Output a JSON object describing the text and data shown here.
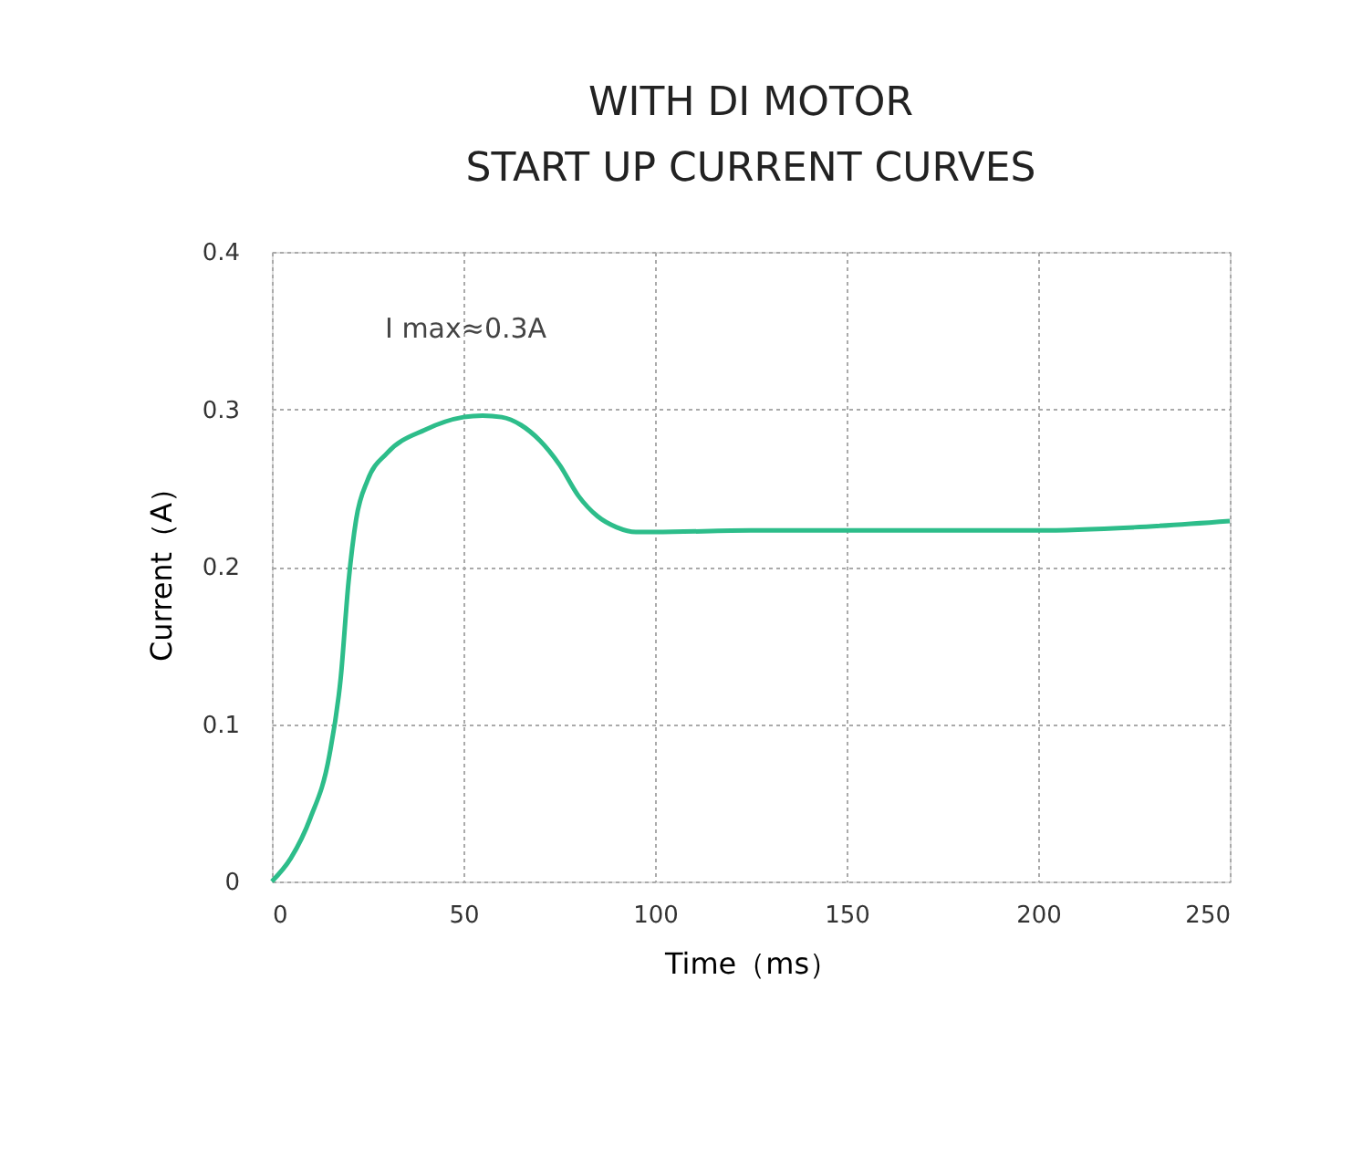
{
  "chart_data": {
    "type": "line",
    "title": [
      "WITH DI MOTOR",
      "START UP CURRENT CURVES"
    ],
    "xlabel": "Time（ms）",
    "ylabel": "Current（A）",
    "x": [
      0,
      5,
      10,
      15,
      18,
      20,
      22,
      25,
      30,
      40,
      50,
      55,
      60,
      65,
      70,
      75,
      80,
      85,
      90,
      95,
      100,
      125,
      150,
      175,
      200,
      225,
      250
    ],
    "series": [
      {
        "color": "#2dbd8a",
        "values": [
          0,
          0.015,
          0.04,
          0.08,
          0.13,
          0.19,
          0.23,
          0.255,
          0.272,
          0.287,
          0.295,
          0.296,
          0.295,
          0.29,
          0.28,
          0.265,
          0.245,
          0.232,
          0.225,
          0.222,
          0.222,
          0.223,
          0.223,
          0.223,
          0.223,
          0.225,
          0.229
        ]
      }
    ],
    "xlim": [
      0,
      250
    ],
    "xticks": [
      0,
      50,
      100,
      150,
      200,
      250
    ],
    "ylim": [
      0,
      0.4
    ],
    "yticks": [
      {
        "value": 0,
        "label": "0"
      },
      0.1,
      0.2,
      0.3,
      0.4
    ],
    "grid": true,
    "line_style": "solid",
    "marker": "none",
    "annotations": [
      "I max≈0.3A"
    ]
  }
}
